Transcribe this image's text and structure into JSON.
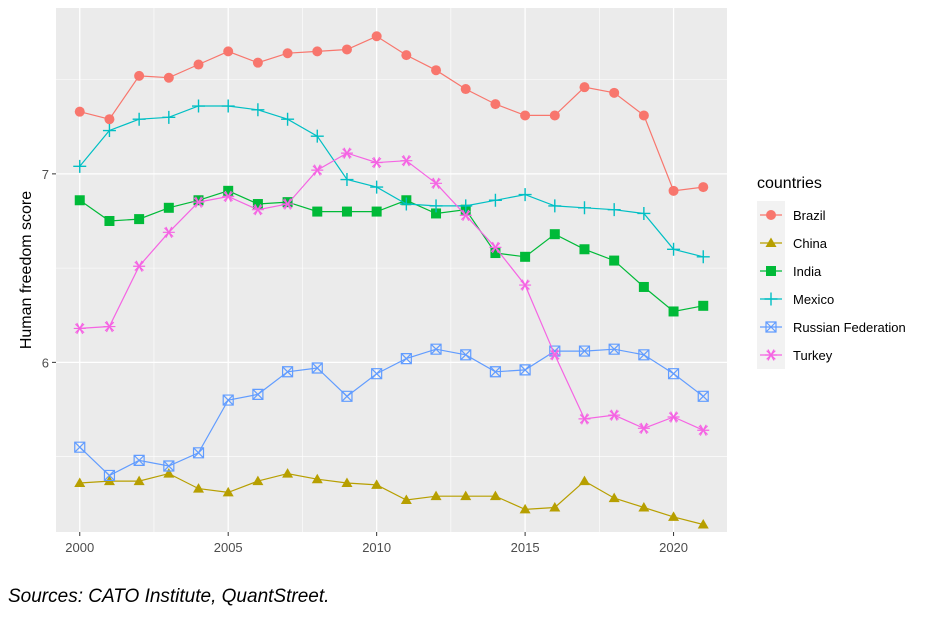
{
  "chart_data": {
    "type": "line",
    "title": "",
    "xlabel": "",
    "ylabel": "Human freedom score",
    "xlim": [
      1999.2,
      2021.8
    ],
    "ylim": [
      5.1,
      7.88
    ],
    "x_ticks": [
      2000,
      2005,
      2010,
      2015,
      2020
    ],
    "y_ticks": [
      6,
      7
    ],
    "grid": true,
    "legend": {
      "title": "countries",
      "position": "right"
    },
    "x": [
      2000,
      2001,
      2002,
      2003,
      2004,
      2005,
      2006,
      2007,
      2008,
      2009,
      2010,
      2011,
      2012,
      2013,
      2014,
      2015,
      2016,
      2017,
      2018,
      2019,
      2020,
      2021
    ],
    "series": [
      {
        "name": "Brazil",
        "color": "#F8766D",
        "marker": "circle",
        "values": [
          7.33,
          7.29,
          7.52,
          7.51,
          7.58,
          7.65,
          7.59,
          7.64,
          7.65,
          7.66,
          7.73,
          7.63,
          7.55,
          7.45,
          7.37,
          7.31,
          7.31,
          7.46,
          7.43,
          7.31,
          6.91,
          6.93
        ]
      },
      {
        "name": "China",
        "color": "#B79F00",
        "marker": "triangle",
        "values": [
          5.36,
          5.37,
          5.37,
          5.41,
          5.33,
          5.31,
          5.37,
          5.41,
          5.38,
          5.36,
          5.35,
          5.27,
          5.29,
          5.29,
          5.29,
          5.22,
          5.23,
          5.37,
          5.28,
          5.23,
          5.18,
          5.14
        ]
      },
      {
        "name": "India",
        "color": "#00BA38",
        "marker": "square",
        "values": [
          6.86,
          6.75,
          6.76,
          6.82,
          6.86,
          6.91,
          6.84,
          6.85,
          6.8,
          6.8,
          6.8,
          6.86,
          6.79,
          6.81,
          6.58,
          6.56,
          6.68,
          6.6,
          6.54,
          6.4,
          6.27,
          6.3
        ]
      },
      {
        "name": "Mexico",
        "color": "#00BFC4",
        "marker": "plus",
        "values": [
          7.04,
          7.23,
          7.29,
          7.3,
          7.36,
          7.36,
          7.34,
          7.29,
          7.2,
          6.97,
          6.93,
          6.84,
          6.83,
          6.83,
          6.86,
          6.89,
          6.83,
          6.82,
          6.81,
          6.79,
          6.6,
          6.56
        ]
      },
      {
        "name": "Russian Federation",
        "color": "#619CFF",
        "marker": "boxx",
        "values": [
          5.55,
          5.4,
          5.48,
          5.45,
          5.52,
          5.8,
          5.83,
          5.95,
          5.97,
          5.82,
          5.94,
          6.02,
          6.07,
          6.04,
          5.95,
          5.96,
          6.06,
          6.06,
          6.07,
          6.04,
          5.94,
          5.82
        ]
      },
      {
        "name": "Turkey",
        "color": "#F564E3",
        "marker": "asterisk",
        "values": [
          6.18,
          6.19,
          6.51,
          6.69,
          6.85,
          6.88,
          6.81,
          6.84,
          7.02,
          7.11,
          7.06,
          7.07,
          6.95,
          6.78,
          6.61,
          6.41,
          6.04,
          5.7,
          5.72,
          5.65,
          5.71,
          5.64
        ]
      }
    ],
    "caption": "Sources: CATO Institute, QuantStreet."
  }
}
